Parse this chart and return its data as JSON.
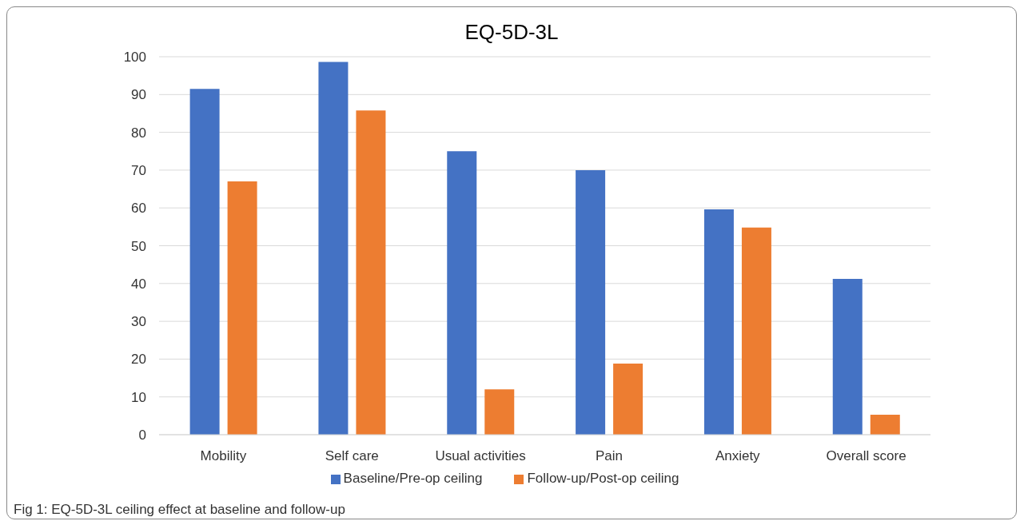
{
  "chart_data": {
    "type": "bar",
    "title": "EQ-5D-3L",
    "categories": [
      "Mobility",
      "Self care",
      "Usual activities",
      "Pain",
      "Anxiety",
      "Overall score"
    ],
    "series": [
      {
        "name": "Baseline/Pre-op ceiling",
        "color": "#4472c4",
        "values": [
          91.5,
          98.6,
          75,
          70,
          59.6,
          41.2
        ]
      },
      {
        "name": "Follow-up/Post-op ceiling",
        "color": "#ed7d31",
        "values": [
          67,
          85.8,
          12,
          18.8,
          54.8,
          5.3
        ]
      }
    ],
    "ylim": [
      0,
      100
    ],
    "yticks": [
      0,
      10,
      20,
      30,
      40,
      50,
      60,
      70,
      80,
      90,
      100
    ],
    "grid": "y",
    "legend": "bottom",
    "annotations": [
      "Fig 1: EQ-5D-3L ceiling effect at baseline and follow-up"
    ]
  }
}
